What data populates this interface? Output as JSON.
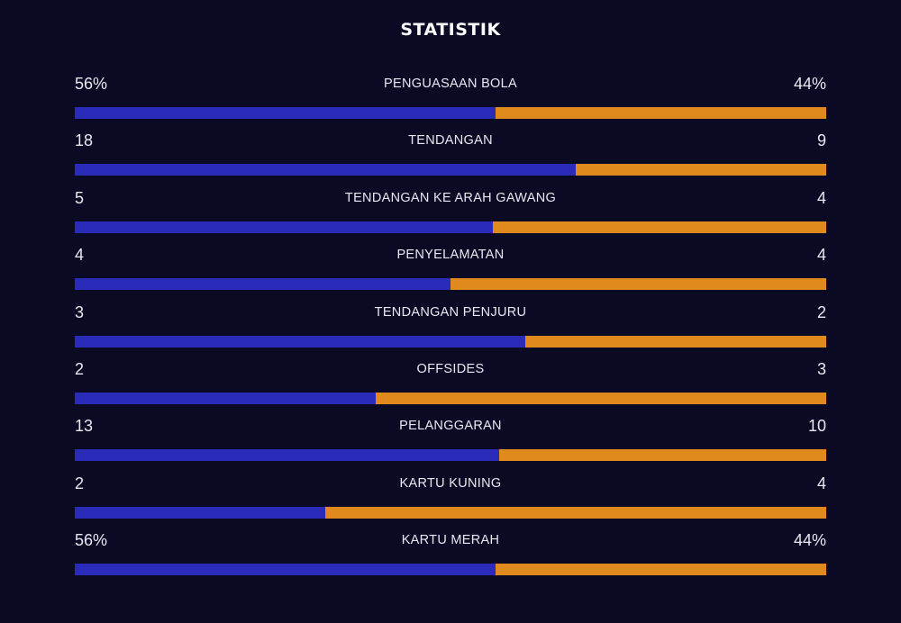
{
  "title": "STATISTIK",
  "colors": {
    "background": "#0a0a25",
    "home": "#2a2bb8",
    "away": "#e08a1e",
    "text": "#e8e8f0"
  },
  "stats": [
    {
      "label": "PENGUASAAN BOLA",
      "left": "56%",
      "right": "44%",
      "home_share": 0.56
    },
    {
      "label": "TENDANGAN",
      "left": "18",
      "right": "9",
      "home_share": 0.667
    },
    {
      "label": "TENDANGAN KE ARAH GAWANG",
      "left": "5",
      "right": "4",
      "home_share": 0.556
    },
    {
      "label": "PENYELAMATAN",
      "left": "4",
      "right": "4",
      "home_share": 0.5
    },
    {
      "label": "TENDANGAN PENJURU",
      "left": "3",
      "right": "2",
      "home_share": 0.6
    },
    {
      "label": "OFFSIDES",
      "left": "2",
      "right": "3",
      "home_share": 0.4
    },
    {
      "label": "PELANGGARAN",
      "left": "13",
      "right": "10",
      "home_share": 0.565
    },
    {
      "label": "KARTU KUNING",
      "left": "2",
      "right": "4",
      "home_share": 0.333
    },
    {
      "label": "KARTU MERAH",
      "left": "56%",
      "right": "44%",
      "home_share": 0.56
    }
  ]
}
